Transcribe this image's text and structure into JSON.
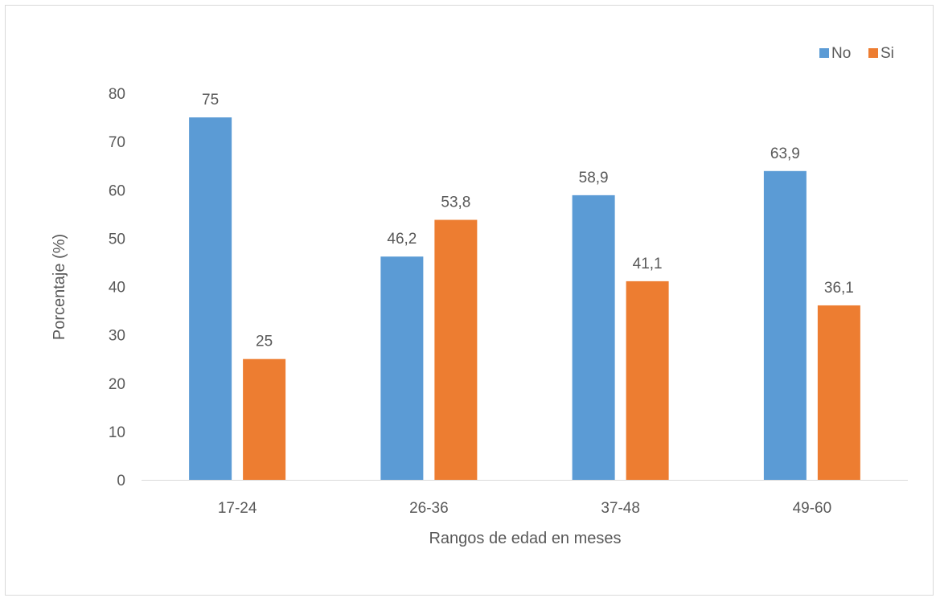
{
  "chart_data": {
    "type": "bar",
    "categories": [
      "17-24",
      "26-36",
      "37-48",
      "49-60"
    ],
    "series": [
      {
        "name": "No",
        "values": [
          75,
          46.2,
          58.9,
          63.9
        ],
        "value_labels": [
          "75",
          "46,2",
          "58,9",
          "63,9"
        ],
        "color": "#5b9bd5"
      },
      {
        "name": "Si",
        "values": [
          25,
          53.8,
          41.1,
          36.1
        ],
        "value_labels": [
          "25",
          "53,8",
          "41,1",
          "36,1"
        ],
        "color": "#ed7d31"
      }
    ],
    "xlabel": "Rangos de edad en meses",
    "ylabel": "Porcentaje (%)",
    "ylim": [
      0,
      80
    ],
    "yticks": [
      0,
      10,
      20,
      30,
      40,
      50,
      60,
      70,
      80
    ],
    "grid": false,
    "legend_position": "top-right"
  }
}
